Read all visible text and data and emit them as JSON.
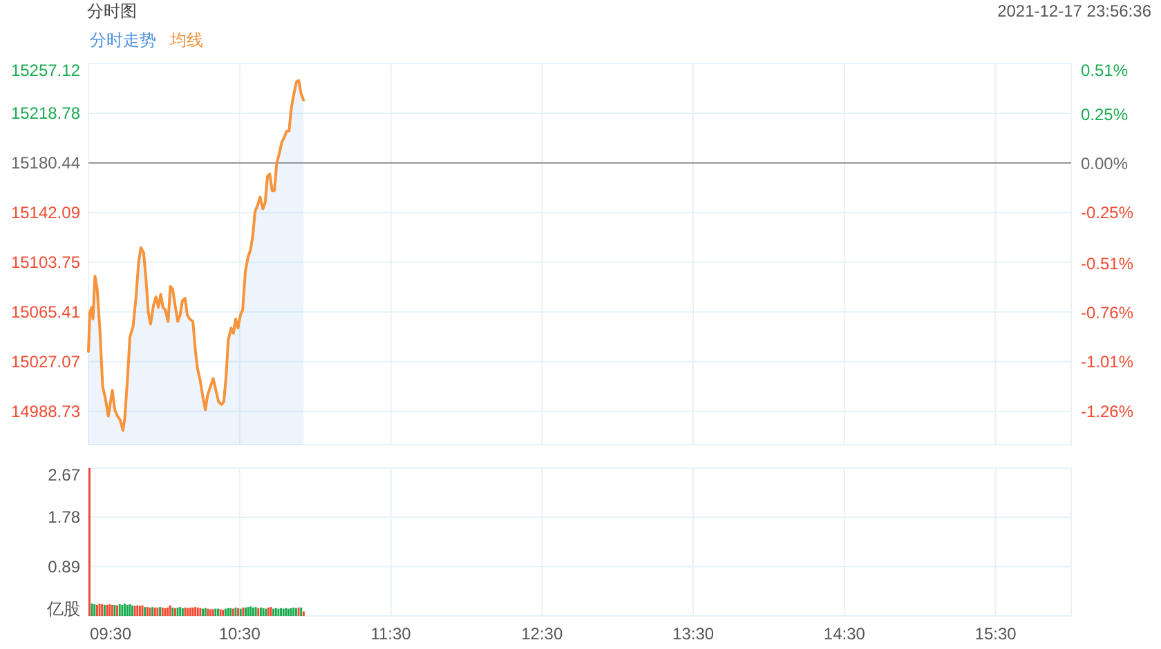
{
  "chart_data": [
    {
      "type": "line",
      "title": "分时图",
      "annotations": [
        "2021-12-17 23:56:36"
      ],
      "x": [
        9.5,
        9.509,
        9.521,
        9.53,
        9.543,
        9.558,
        9.576,
        9.594,
        9.613,
        9.631,
        9.643,
        9.658,
        9.674,
        9.692,
        9.71,
        9.728,
        9.74,
        9.759,
        9.774,
        9.795,
        9.814,
        9.832,
        9.847,
        9.865,
        9.881,
        9.896,
        9.911,
        9.929,
        9.947,
        9.963,
        9.978,
        9.993,
        10.008,
        10.027,
        10.042,
        10.057,
        10.075,
        10.091,
        10.106,
        10.121,
        10.139,
        10.154,
        10.17,
        10.191,
        10.206,
        10.221,
        10.24,
        10.255,
        10.273,
        10.288,
        10.307,
        10.325,
        10.343,
        10.361,
        10.38,
        10.395,
        10.41,
        10.425,
        10.444,
        10.459,
        10.474,
        10.489,
        10.505,
        10.52,
        10.538,
        10.556,
        10.571,
        10.587,
        10.602,
        10.62,
        10.635,
        10.654,
        10.669,
        10.684,
        10.699,
        10.715,
        10.73,
        10.745,
        10.763,
        10.778,
        10.794,
        10.812,
        10.827,
        10.842,
        10.861,
        10.876,
        10.891,
        10.906,
        10.922
      ],
      "series": [
        {
          "name": "分时走势",
          "type": "area",
          "color": "#4a90e2",
          "values": [
            15035,
            15065,
            15069,
            15060,
            15093,
            15083,
            15051,
            15008,
            14998,
            14985,
            14994,
            15005,
            14990,
            14985,
            14982,
            14974,
            14983,
            15015,
            15046,
            15054,
            15076,
            15104,
            15115,
            15111,
            15090,
            15065,
            15056,
            15070,
            15077,
            15069,
            15079,
            15069,
            15067,
            15058,
            15085,
            15083,
            15069,
            15058,
            15063,
            15074,
            15076,
            15063,
            15060,
            15058,
            15037,
            15022,
            15012,
            15001,
            14990,
            15001,
            15008,
            15014,
            15005,
            14996,
            14994,
            14996,
            15015,
            15044,
            15053,
            15049,
            15060,
            15053,
            15063,
            15067,
            15097,
            15108,
            15113,
            15124,
            15143,
            15148,
            15154,
            15145,
            15150,
            15170,
            15172,
            15159,
            15159,
            15180,
            15188,
            15196,
            15200,
            15205,
            15205,
            15223,
            15235,
            15243,
            15244,
            15234,
            15229
          ]
        },
        {
          "name": "均线",
          "type": "line",
          "color": "#f7933b",
          "values": [
            15035,
            15065,
            15069,
            15060,
            15093,
            15083,
            15051,
            15008,
            14998,
            14985,
            14994,
            15005,
            14990,
            14985,
            14982,
            14974,
            14983,
            15015,
            15046,
            15054,
            15076,
            15104,
            15115,
            15111,
            15090,
            15065,
            15056,
            15070,
            15077,
            15069,
            15079,
            15069,
            15067,
            15058,
            15085,
            15083,
            15069,
            15058,
            15063,
            15074,
            15076,
            15063,
            15060,
            15058,
            15037,
            15022,
            15012,
            15001,
            14990,
            15001,
            15008,
            15014,
            15005,
            14996,
            14994,
            14996,
            15015,
            15044,
            15053,
            15049,
            15060,
            15053,
            15063,
            15067,
            15097,
            15108,
            15113,
            15124,
            15143,
            15148,
            15154,
            15145,
            15150,
            15170,
            15172,
            15159,
            15159,
            15180,
            15188,
            15196,
            15200,
            15205,
            15205,
            15223,
            15235,
            15243,
            15244,
            15234,
            15229
          ]
        }
      ],
      "xlim": [
        9.5,
        16
      ],
      "xticks": [
        {
          "value": 9.5,
          "label": null
        },
        {
          "value": 10.5,
          "label": null
        },
        {
          "value": 11.5,
          "label": null
        },
        {
          "value": 12.5,
          "label": null
        },
        {
          "value": 13.5,
          "label": null
        },
        {
          "value": 14.5,
          "label": null
        },
        {
          "value": 15.5,
          "label": null
        }
      ],
      "ylim": [
        14963,
        15257.12
      ],
      "yticks": [
        14988.73,
        15027.07,
        15065.41,
        15103.75,
        15142.09,
        15180.44,
        15218.78,
        15257.12
      ],
      "y2lim": [
        -1.43,
        0.51
      ],
      "y2ticks": [
        {
          "value": -1.26,
          "label": "-1.26%"
        },
        {
          "value": -1.01,
          "label": "-1.01%"
        },
        {
          "value": -0.76,
          "label": "-0.76%"
        },
        {
          "value": -0.51,
          "label": "-0.51%"
        },
        {
          "value": -0.25,
          "label": "-0.25%"
        },
        {
          "value": 0,
          "label": "0.00%"
        },
        {
          "value": 0.25,
          "label": "0.25%"
        },
        {
          "value": 0.51,
          "label": "0.51%"
        }
      ],
      "ref_lines": [
        {
          "axis": "y",
          "value": 15180.44,
          "color": "#999999"
        }
      ],
      "grid": true,
      "legend": "top left",
      "tick_labels": "y"
    },
    {
      "type": "bar",
      "x": [
        9.5,
        9.5167,
        9.5333,
        9.55,
        9.5667,
        9.5833,
        9.6,
        9.6167,
        9.6333,
        9.65,
        9.6667,
        9.6833,
        9.7,
        9.7167,
        9.7333,
        9.75,
        9.7667,
        9.7833,
        9.8,
        9.8167,
        9.8333,
        9.85,
        9.8667,
        9.8833,
        9.9,
        9.9167,
        9.9333,
        9.95,
        9.9667,
        9.9833,
        10.0,
        10.0167,
        10.0333,
        10.05,
        10.0667,
        10.0833,
        10.1,
        10.1167,
        10.1333,
        10.15,
        10.1667,
        10.1833,
        10.2,
        10.2167,
        10.2333,
        10.25,
        10.2667,
        10.2833,
        10.3,
        10.3167,
        10.3333,
        10.35,
        10.3667,
        10.3833,
        10.4,
        10.4167,
        10.4333,
        10.45,
        10.4667,
        10.4833,
        10.5,
        10.5167,
        10.5333,
        10.55,
        10.5667,
        10.5833,
        10.6,
        10.6167,
        10.6333,
        10.65,
        10.6667,
        10.6833,
        10.7,
        10.7167,
        10.7333,
        10.75,
        10.7667,
        10.7833,
        10.8,
        10.8167,
        10.8333,
        10.85,
        10.8667,
        10.8833,
        10.9,
        10.9167
      ],
      "values": [
        2.67,
        0.22,
        0.21,
        0.2,
        0.22,
        0.21,
        0.2,
        0.2,
        0.21,
        0.2,
        0.2,
        0.19,
        0.21,
        0.2,
        0.22,
        0.2,
        0.21,
        0.19,
        0.18,
        0.19,
        0.18,
        0.19,
        0.16,
        0.16,
        0.15,
        0.16,
        0.15,
        0.15,
        0.16,
        0.15,
        0.14,
        0.15,
        0.19,
        0.15,
        0.14,
        0.15,
        0.16,
        0.14,
        0.15,
        0.14,
        0.15,
        0.15,
        0.16,
        0.15,
        0.14,
        0.13,
        0.14,
        0.13,
        0.12,
        0.12,
        0.13,
        0.13,
        0.12,
        0.11,
        0.13,
        0.14,
        0.14,
        0.13,
        0.15,
        0.14,
        0.13,
        0.15,
        0.15,
        0.16,
        0.17,
        0.15,
        0.16,
        0.14,
        0.15,
        0.14,
        0.13,
        0.15,
        0.16,
        0.13,
        0.14,
        0.13,
        0.14,
        0.13,
        0.14,
        0.13,
        0.14,
        0.15,
        0.14,
        0.15,
        0.15,
        0.08
      ],
      "colors": [
        "#f04b32",
        "#1aab4f",
        "#1aab4f",
        "#f04b32",
        "#f04b32",
        "#f04b32",
        "#1aab4f",
        "#f04b32",
        "#f04b32",
        "#f04b32",
        "#1aab4f",
        "#f04b32",
        "#1aab4f",
        "#1aab4f",
        "#1aab4f",
        "#1aab4f",
        "#1aab4f",
        "#1aab4f",
        "#f04b32",
        "#f04b32",
        "#f04b32",
        "#f04b32",
        "#1aab4f",
        "#f04b32",
        "#f04b32",
        "#1aab4f",
        "#f04b32",
        "#f04b32",
        "#1aab4f",
        "#f04b32",
        "#f04b32",
        "#f04b32",
        "#f04b32",
        "#1aab4f",
        "#f04b32",
        "#1aab4f",
        "#1aab4f",
        "#1aab4f",
        "#f04b32",
        "#f04b32",
        "#f04b32",
        "#f04b32",
        "#f04b32",
        "#f04b32",
        "#f04b32",
        "#1aab4f",
        "#1aab4f",
        "#f04b32",
        "#f04b32",
        "#f04b32",
        "#1aab4f",
        "#1aab4f",
        "#f04b32",
        "#f04b32",
        "#1aab4f",
        "#1aab4f",
        "#1aab4f",
        "#f04b32",
        "#1aab4f",
        "#f04b32",
        "#1aab4f",
        "#f04b32",
        "#1aab4f",
        "#1aab4f",
        "#1aab4f",
        "#1aab4f",
        "#1aab4f",
        "#f04b32",
        "#1aab4f",
        "#1aab4f",
        "#1aab4f",
        "#f04b32",
        "#f04b32",
        "#1aab4f",
        "#1aab4f",
        "#1aab4f",
        "#1aab4f",
        "#1aab4f",
        "#1aab4f",
        "#1aab4f",
        "#1aab4f",
        "#1aab4f",
        "#1aab4f",
        "#f04b32",
        "#1aab4f",
        "#f04b32"
      ],
      "xlim": [
        9.5,
        16
      ],
      "xticks": [
        {
          "value": 9.5,
          "label": "09:30"
        },
        {
          "value": 10.5,
          "label": "10:30"
        },
        {
          "value": 11.5,
          "label": "11:30"
        },
        {
          "value": 12.5,
          "label": "12:30"
        },
        {
          "value": 13.5,
          "label": "13:30"
        },
        {
          "value": 14.5,
          "label": "14:30"
        },
        {
          "value": 15.5,
          "label": "15:30"
        }
      ],
      "ylim": [
        0,
        2.67
      ],
      "yticks": [
        {
          "value": 0,
          "label": "亿股"
        },
        0.89,
        1.78,
        2.67
      ],
      "grid": true
    }
  ]
}
